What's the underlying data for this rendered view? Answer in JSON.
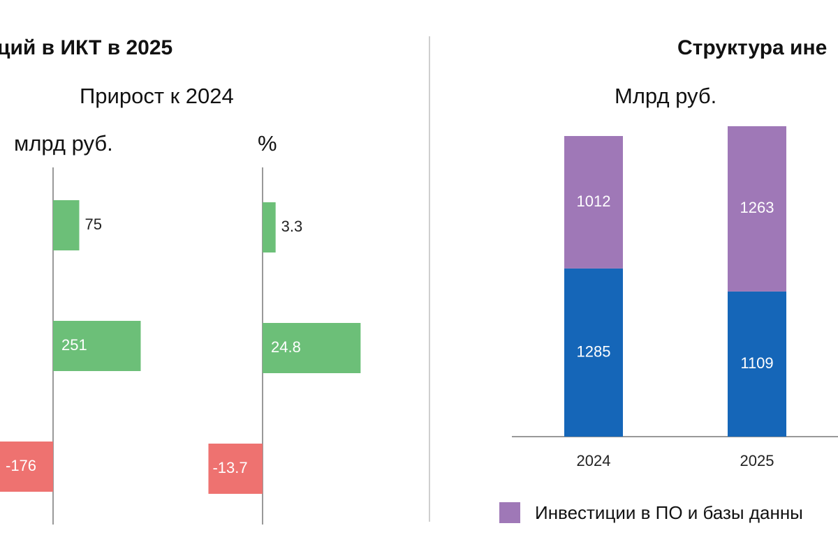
{
  "left_title": "ций в ИКТ в 2025",
  "right_title": "Структура ине",
  "left_subtitle": "Прирост к 2024",
  "right_subtitle": "Млрд руб.",
  "colors": {
    "positive": "#6cbf78",
    "negative": "#ee7270",
    "software": "#9f78b7",
    "hardware": "#1566b8",
    "axis": "#999999"
  },
  "chart_data": [
    {
      "type": "bar",
      "orientation": "horizontal",
      "title": "млрд руб.",
      "values": [
        75,
        251,
        -176
      ],
      "labels": [
        "75",
        "251",
        "-176"
      ]
    },
    {
      "type": "bar",
      "orientation": "horizontal",
      "title": "%",
      "values": [
        3.3,
        24.8,
        -13.7
      ],
      "labels": [
        "3.3",
        "24.8",
        "-13.7"
      ]
    },
    {
      "type": "bar",
      "stacked": true,
      "categories": [
        "2024",
        "2025"
      ],
      "series": [
        {
          "name": "",
          "values": [
            1285,
            1109
          ],
          "color": "#1566b8"
        },
        {
          "name": "Инвестиции в ПО и базы данны",
          "values": [
            1012,
            1263
          ],
          "color": "#9f78b7"
        }
      ]
    }
  ]
}
